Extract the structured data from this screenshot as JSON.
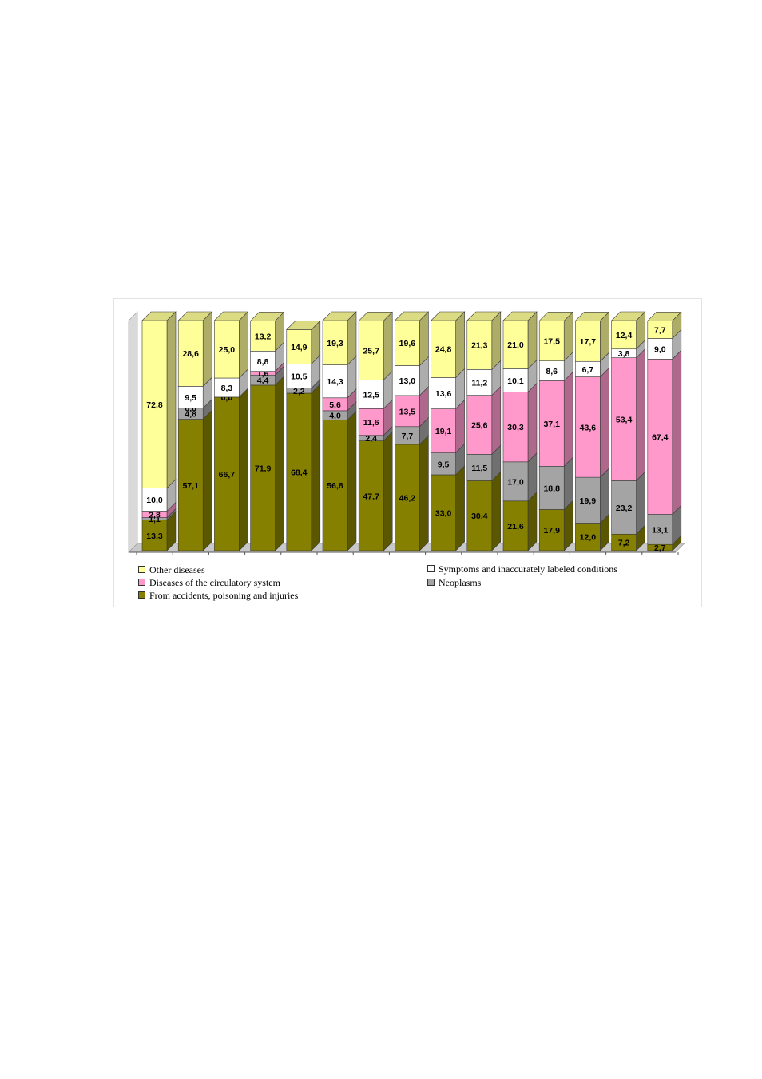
{
  "chart_data": {
    "type": "bar",
    "stacked": true,
    "orientation": "vertical",
    "style": "3d",
    "title": "",
    "xlabel": "",
    "ylabel": "",
    "ylim": [
      0,
      100
    ],
    "grid": false,
    "legend_position": "bottom",
    "categories_count": 15,
    "series": [
      {
        "key": "accidents",
        "name": "From accidents, poisoning and injuries",
        "color": "#858000",
        "values": [
          13.3,
          57.1,
          66.7,
          71.9,
          68.4,
          56.8,
          47.7,
          46.2,
          33.0,
          30.4,
          21.6,
          17.9,
          12.0,
          7.2,
          2.7
        ],
        "labels": [
          "13,3",
          "57,1",
          "66,7",
          "71,9",
          "68,4",
          "56,8",
          "47,7",
          "46,2",
          "33,0",
          "30,4",
          "21,6",
          "17,9",
          "12,0",
          "7,2",
          "2,7"
        ]
      },
      {
        "key": "neoplasms",
        "name": "Neoplasms",
        "color": "#a4a4a4",
        "values": [
          1.1,
          4.8,
          0.0,
          4.4,
          2.2,
          4.0,
          2.4,
          7.7,
          9.5,
          11.5,
          17.0,
          18.8,
          19.9,
          23.2,
          13.1
        ],
        "labels": [
          "1,1",
          "4,8",
          "0,0",
          "4,4",
          "2,2",
          "4,0",
          "2,4",
          "7,7",
          "9,5",
          "11,5",
          "17,0",
          "18,8",
          "19,9",
          "23,2",
          "13,1"
        ]
      },
      {
        "key": "circulatory",
        "name": "Diseases of the circulatory system",
        "color": "#ff99cc",
        "values": [
          2.8,
          0.0,
          0.0,
          1.6,
          0.0,
          5.6,
          11.6,
          13.5,
          19.1,
          25.6,
          30.3,
          37.1,
          43.6,
          53.4,
          67.4
        ],
        "labels": [
          "2,8",
          "0,0",
          "0,0",
          "1,6",
          "",
          "5,6",
          "11,6",
          "13,5",
          "19,1",
          "25,6",
          "30,3",
          "37,1",
          "43,6",
          "53,4",
          "67,4"
        ]
      },
      {
        "key": "symptoms",
        "name": "Symptoms and inaccurately labeled conditions",
        "color": "#ffffff",
        "values": [
          10.0,
          9.5,
          8.3,
          8.8,
          10.5,
          14.3,
          12.5,
          13.0,
          13.6,
          11.2,
          10.1,
          8.6,
          6.7,
          3.8,
          9.0
        ],
        "labels": [
          "10,0",
          "9,5",
          "8,3",
          "8,8",
          "10,5",
          "14,3",
          "12,5",
          "13,0",
          "13,6",
          "11,2",
          "10,1",
          "8,6",
          "6,7",
          "3,8",
          "9,0"
        ]
      },
      {
        "key": "other",
        "name": "Other diseases",
        "color": "#ffff99",
        "values": [
          72.8,
          28.6,
          25.0,
          13.2,
          14.9,
          19.3,
          25.7,
          19.6,
          24.8,
          21.3,
          21.0,
          17.5,
          17.7,
          12.4,
          7.7
        ],
        "labels": [
          "72,8",
          "28,6",
          "25,0",
          "13,2",
          "14,9",
          "19,3",
          "25,7",
          "19,6",
          "24,8",
          "21,3",
          "21,0",
          "17,5",
          "17,7",
          "12,4",
          "7,7"
        ]
      }
    ]
  },
  "legend": {
    "other": "Other diseases",
    "symptoms": "Symptoms and inaccurately labeled conditions",
    "circulatory": "Diseases of the circulatory system",
    "neoplasms": "Neoplasms",
    "accidents": "From accidents, poisoning and injuries"
  }
}
